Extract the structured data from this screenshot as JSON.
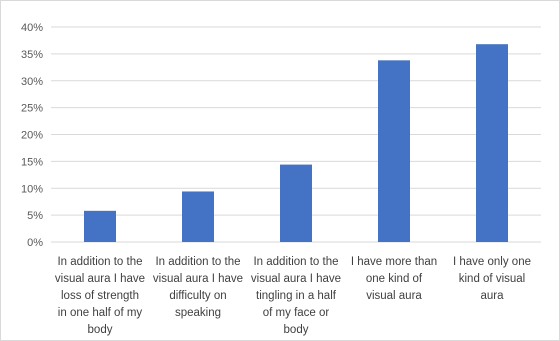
{
  "chart_data": {
    "type": "bar",
    "title": "",
    "xlabel": "",
    "ylabel": "",
    "categories": [
      "In addition to the visual aura I have loss of strength in one half of my body",
      "In addition to the visual aura I have difficulty on speaking",
      "In addition to the visual aura I have tingling in a half of my face or body",
      "I have more than one kind of visual aura",
      "I have only one kind of visual aura"
    ],
    "category_lines": [
      [
        "In addition to the",
        "visual aura I have",
        "loss of strength",
        "in one half of my",
        "body"
      ],
      [
        "In addition to the",
        "visual aura I have",
        "difficulty on",
        "speaking"
      ],
      [
        "In addition to the",
        "visual aura I have",
        "tingling in a half",
        "of my face or",
        "body"
      ],
      [
        "I have more than",
        "one kind of",
        "visual aura"
      ],
      [
        "I have only one",
        "kind of visual",
        "aura"
      ]
    ],
    "values": [
      5.8,
      9.4,
      14.4,
      33.8,
      36.8
    ],
    "ylim": [
      0,
      40
    ],
    "yticks": [
      "0%",
      "5%",
      "10%",
      "15%",
      "20%",
      "25%",
      "30%",
      "35%",
      "40%"
    ],
    "grid": true,
    "legend": "none",
    "bar_color": "#4472c4",
    "grid_color": "#d9d9d9"
  }
}
